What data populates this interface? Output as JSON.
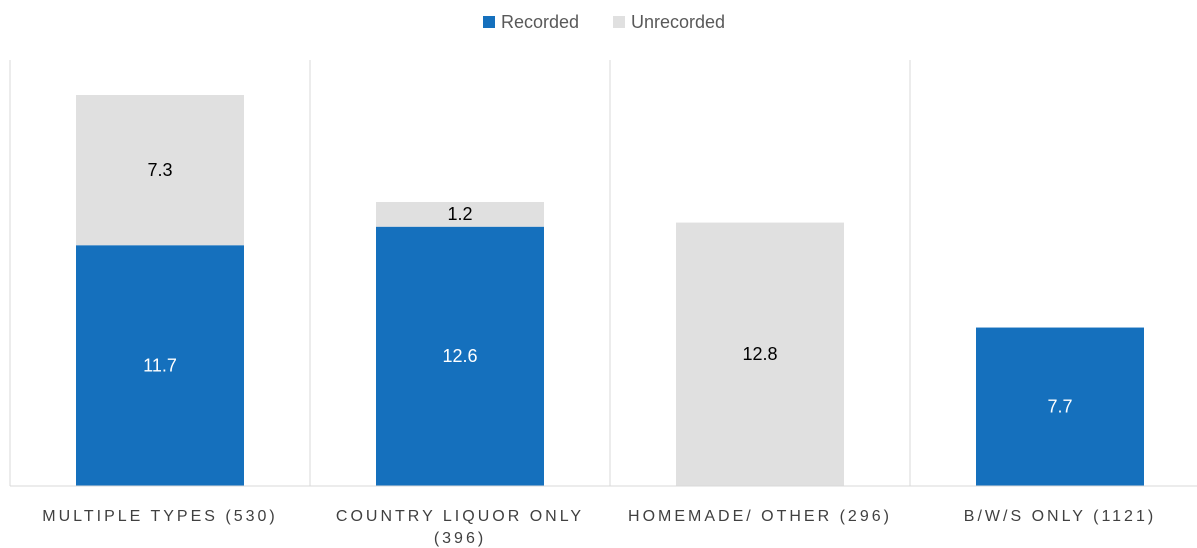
{
  "chart_data": {
    "type": "stacked_bar",
    "categories": [
      "MULTIPLE TYPES (530)",
      "COUNTRY LIQUOR ONLY (396)",
      "HOMEMADE/ OTHER (296)",
      "B/W/S ONLY (1121)"
    ],
    "series": [
      {
        "name": "Recorded",
        "color": "#1570bd",
        "label_color": "#ffffff",
        "values": [
          11.7,
          12.6,
          null,
          7.7
        ]
      },
      {
        "name": "Unrecorded",
        "color": "#e0e0e0",
        "label_color": "#000000",
        "values": [
          7.3,
          1.2,
          12.8,
          null
        ]
      }
    ],
    "legend": "top"
  }
}
